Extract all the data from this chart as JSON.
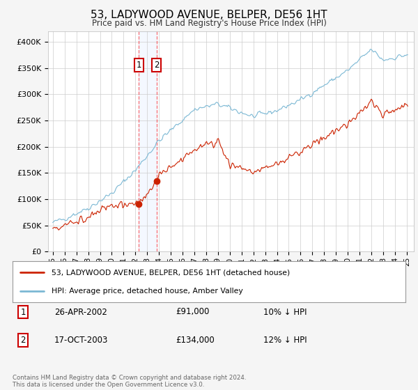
{
  "title": "53, LADYWOOD AVENUE, BELPER, DE56 1HT",
  "subtitle": "Price paid vs. HM Land Registry's House Price Index (HPI)",
  "red_label": "53, LADYWOOD AVENUE, BELPER, DE56 1HT (detached house)",
  "blue_label": "HPI: Average price, detached house, Amber Valley",
  "transaction1": {
    "num": 1,
    "date": "26-APR-2002",
    "price": 91000,
    "pct": "10%",
    "dir": "↓"
  },
  "transaction2": {
    "num": 2,
    "date": "17-OCT-2003",
    "price": 134000,
    "pct": "12%",
    "dir": "↓"
  },
  "footer": "Contains HM Land Registry data © Crown copyright and database right 2024.\nThis data is licensed under the Open Government Licence v3.0.",
  "ylim": [
    0,
    420000
  ],
  "yticks": [
    0,
    50000,
    100000,
    150000,
    200000,
    250000,
    300000,
    350000,
    400000
  ],
  "ytick_labels": [
    "£0",
    "£50K",
    "£100K",
    "£150K",
    "£200K",
    "£250K",
    "£300K",
    "£350K",
    "£400K"
  ],
  "background_color": "#f5f5f5",
  "plot_bg_color": "#ffffff",
  "grid_color": "#cccccc",
  "transaction1_x": 2002.29,
  "transaction1_y": 91000,
  "transaction2_x": 2003.79,
  "transaction2_y": 134000,
  "vline1_x": 2002.29,
  "vline2_x": 2003.79,
  "blue_color": "#7bb8d4",
  "red_color": "#cc2200",
  "x_start": 1995,
  "x_end": 2025,
  "xtick_start": 1995,
  "xtick_end": 2026
}
